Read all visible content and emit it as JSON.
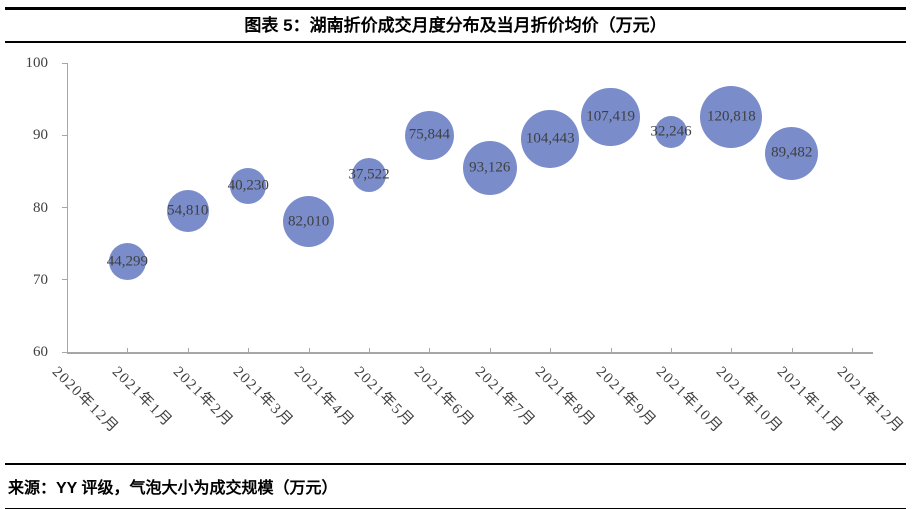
{
  "header": {
    "title": "图表 5：湖南折价成交月度分布及当月折价均价（万元）"
  },
  "footer": {
    "source": "来源：YY 评级，气泡大小为成交规模（万元）"
  },
  "colors": {
    "bubble_fill": "#7A8CCA",
    "axis_line": "#A6A6A6",
    "axis_text": "#404040",
    "label_text": "#3F3F3F",
    "rule": "#000000"
  },
  "chart_data": {
    "type": "scatter",
    "subtype": "bubble",
    "title": "图表 5：湖南折价成交月度分布及当月折价均价（万元）",
    "xlabel": "",
    "ylabel": "",
    "ylim": [
      60,
      100
    ],
    "yticks": [
      60,
      70,
      80,
      90,
      100
    ],
    "grid": false,
    "legend": "none",
    "size_meaning": "气泡大小为成交规模（万元）",
    "categories": [
      "2020年12月",
      "2021年1月",
      "2021年2月",
      "2021年3月",
      "2021年4月",
      "2021年5月",
      "2021年6月",
      "2021年7月",
      "2021年8月",
      "2021年9月",
      "2021年10月",
      "2021年10月",
      "2021年11月",
      "2021年12月"
    ],
    "points": [
      {
        "month": "2021年1月",
        "tick_index": 1,
        "avg_price": 72.5,
        "volume": 44299,
        "volume_label": "44,299"
      },
      {
        "month": "2021年2月",
        "tick_index": 2,
        "avg_price": 79.5,
        "volume": 54810,
        "volume_label": "54,810"
      },
      {
        "month": "2021年3月",
        "tick_index": 3,
        "avg_price": 83,
        "volume": 40230,
        "volume_label": "40,230"
      },
      {
        "month": "2021年4月",
        "tick_index": 4,
        "avg_price": 78,
        "volume": 82010,
        "volume_label": "82,010"
      },
      {
        "month": "2021年5月",
        "tick_index": 5,
        "avg_price": 84.5,
        "volume": 37522,
        "volume_label": "37,522"
      },
      {
        "month": "2021年6月",
        "tick_index": 6,
        "avg_price": 90,
        "volume": 75844,
        "volume_label": "75,844"
      },
      {
        "month": "2021年7月",
        "tick_index": 7,
        "avg_price": 85.5,
        "volume": 93126,
        "volume_label": "93,126"
      },
      {
        "month": "2021年8月",
        "tick_index": 8,
        "avg_price": 89.5,
        "volume": 104443,
        "volume_label": "104,443"
      },
      {
        "month": "2021年9月",
        "tick_index": 9,
        "avg_price": 92.5,
        "volume": 107419,
        "volume_label": "107,419"
      },
      {
        "month": "2021年10月",
        "tick_index": 10,
        "avg_price": 90.5,
        "volume": 32246,
        "volume_label": "32,246"
      },
      {
        "month": "2021年10月",
        "tick_index": 11,
        "avg_price": 92.5,
        "volume": 120818,
        "volume_label": "120,818"
      },
      {
        "month": "2021年11月",
        "tick_index": 12,
        "avg_price": 87.5,
        "volume": 89482,
        "volume_label": "89,482"
      }
    ]
  }
}
